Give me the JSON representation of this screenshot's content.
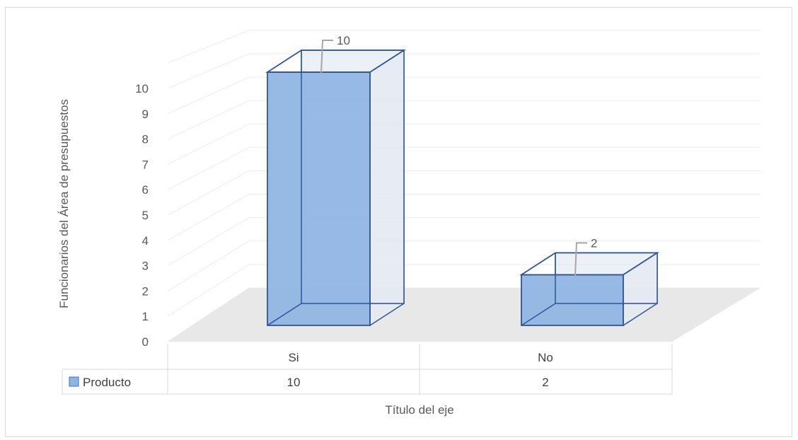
{
  "chart_data": {
    "type": "bar",
    "style": "3d-column-with-data-table",
    "categories": [
      "Si",
      "No"
    ],
    "series": [
      {
        "name": "Producto",
        "values": [
          10,
          2
        ],
        "color": "#8eb4e3",
        "edge_color": "#2f5597"
      }
    ],
    "data_labels": [
      "10",
      "2"
    ],
    "yticks": [
      "0",
      "1",
      "2",
      "3",
      "4",
      "5",
      "6",
      "7",
      "8",
      "9",
      "10"
    ],
    "ylim": [
      0,
      10
    ],
    "ylabel": "Funcionarios del Área de presupuestos",
    "xlabel": "Título del eje",
    "grid": true,
    "legend": "data-table",
    "table": {
      "legend_label": "Producto",
      "row_values": [
        "10",
        "2"
      ]
    }
  }
}
